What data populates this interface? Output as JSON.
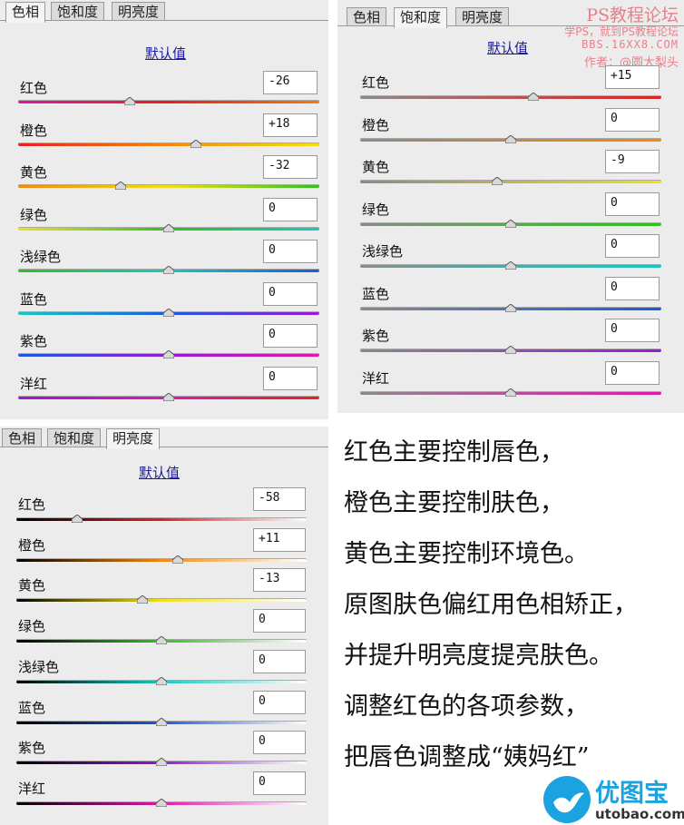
{
  "colors": {
    "accent": "#1a1aa0",
    "watermark": "#e8808a",
    "logo_blue": "#1aa3e0"
  },
  "panel1": {
    "tabs": [
      {
        "label": "色相",
        "active": true
      },
      {
        "label": "饱和度",
        "active": false
      },
      {
        "label": "明亮度",
        "active": false
      }
    ],
    "default_label": "默认值",
    "rows": [
      {
        "label": "红色",
        "value": "-26",
        "level": -26
      },
      {
        "label": "橙色",
        "value": "+18",
        "level": 18
      },
      {
        "label": "黄色",
        "value": "-32",
        "level": -32
      },
      {
        "label": "绿色",
        "value": "0",
        "level": 0
      },
      {
        "label": "浅绿色",
        "value": "0",
        "level": 0
      },
      {
        "label": "蓝色",
        "value": "0",
        "level": 0
      },
      {
        "label": "紫色",
        "value": "0",
        "level": 0
      },
      {
        "label": "洋红",
        "value": "0",
        "level": 0
      }
    ]
  },
  "panel2": {
    "tabs": [
      {
        "label": "色相",
        "active": false
      },
      {
        "label": "饱和度",
        "active": true
      },
      {
        "label": "明亮度",
        "active": false
      }
    ],
    "default_label": "默认值",
    "rows": [
      {
        "label": "红色",
        "value": "+15",
        "level": 15
      },
      {
        "label": "橙色",
        "value": "0",
        "level": 0
      },
      {
        "label": "黄色",
        "value": "-9",
        "level": -9
      },
      {
        "label": "绿色",
        "value": "0",
        "level": 0
      },
      {
        "label": "浅绿色",
        "value": "0",
        "level": 0
      },
      {
        "label": "蓝色",
        "value": "0",
        "level": 0
      },
      {
        "label": "紫色",
        "value": "0",
        "level": 0
      },
      {
        "label": "洋红",
        "value": "0",
        "level": 0
      }
    ]
  },
  "panel3": {
    "tabs": [
      {
        "label": "色相",
        "active": false
      },
      {
        "label": "饱和度",
        "active": false
      },
      {
        "label": "明亮度",
        "active": true
      }
    ],
    "default_label": "默认值",
    "rows": [
      {
        "label": "红色",
        "value": "-58",
        "level": -58
      },
      {
        "label": "橙色",
        "value": "+11",
        "level": 11
      },
      {
        "label": "黄色",
        "value": "-13",
        "level": -13
      },
      {
        "label": "绿色",
        "value": "0",
        "level": 0
      },
      {
        "label": "浅绿色",
        "value": "0",
        "level": 0
      },
      {
        "label": "蓝色",
        "value": "0",
        "level": 0
      },
      {
        "label": "紫色",
        "value": "0",
        "level": 0
      },
      {
        "label": "洋红",
        "value": "0",
        "level": 0
      }
    ]
  },
  "watermark": {
    "title": "PS教程论坛",
    "line1": "学PS，就到PS教程论坛",
    "line2": "BBS.16XX8.COM",
    "line3": "作者：@圆大梨头"
  },
  "text_lines": [
    "红色主要控制唇色，",
    "橙色主要控制肤色，",
    "黄色主要控制环境色。",
    "原图肤色偏红用色相矫正，",
    "并提升明亮度提亮肤色。",
    "调整红色的各项参数，",
    "把唇色调整成“姨妈红”"
  ],
  "logo": {
    "name": "优图宝",
    "url": "utobao.com",
    "icon": "bird-icon"
  }
}
